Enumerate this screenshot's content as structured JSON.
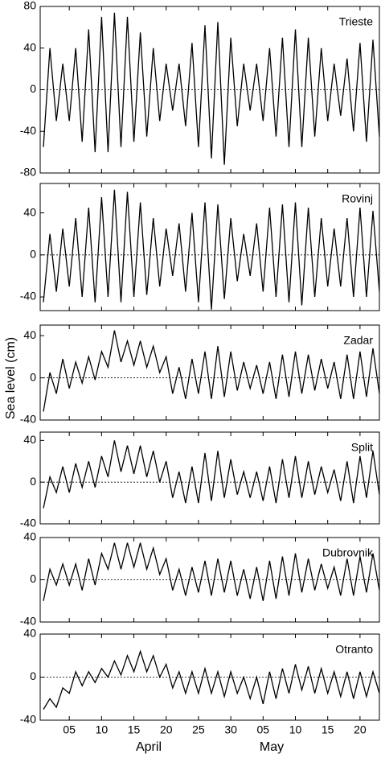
{
  "y_label": "Sea level (cm)",
  "month_labels": [
    "April",
    "May"
  ],
  "chart_data": [
    {
      "type": "line",
      "title": "Trieste",
      "color": "#000000",
      "x": [
        1,
        2,
        3,
        4,
        5,
        6,
        7,
        8,
        9,
        10,
        11,
        12,
        13,
        14,
        15,
        16,
        17,
        18,
        19,
        20,
        21,
        22,
        23,
        24,
        25,
        26,
        27,
        28,
        29,
        30,
        31,
        32,
        33,
        34,
        35,
        36,
        37,
        38,
        39,
        40,
        41,
        42,
        43,
        44,
        45,
        46,
        47,
        48,
        49,
        50,
        51,
        52,
        53
      ],
      "values": [
        -55,
        40,
        -30,
        25,
        -30,
        40,
        -50,
        58,
        -60,
        70,
        -60,
        74,
        -55,
        70,
        -50,
        55,
        -45,
        40,
        -30,
        25,
        -20,
        25,
        -35,
        45,
        -55,
        62,
        -66,
        65,
        -72,
        50,
        -35,
        25,
        -20,
        25,
        -30,
        40,
        -45,
        50,
        -55,
        58,
        -55,
        50,
        -45,
        40,
        -30,
        25,
        -25,
        30,
        -40,
        45,
        -50,
        48,
        -45
      ],
      "xlim": [
        0.5,
        53
      ],
      "ylim": [
        -80,
        80
      ],
      "yticks": [
        -80,
        -40,
        0,
        40,
        80
      ]
    },
    {
      "type": "line",
      "title": "Rovinj",
      "color": "#000000",
      "x": [
        1,
        2,
        3,
        4,
        5,
        6,
        7,
        8,
        9,
        10,
        11,
        12,
        13,
        14,
        15,
        16,
        17,
        18,
        19,
        20,
        21,
        22,
        23,
        24,
        25,
        26,
        27,
        28,
        29,
        30,
        31,
        32,
        33,
        34,
        35,
        36,
        37,
        38,
        39,
        40,
        41,
        42,
        43,
        44,
        45,
        46,
        47,
        48,
        49,
        50,
        51,
        52,
        53
      ],
      "values": [
        -45,
        20,
        -35,
        25,
        -30,
        35,
        -40,
        45,
        -45,
        55,
        -40,
        62,
        -45,
        60,
        -40,
        50,
        -38,
        35,
        -30,
        25,
        -20,
        30,
        -35,
        40,
        -45,
        50,
        -52,
        48,
        -42,
        35,
        -25,
        20,
        -20,
        30,
        -35,
        45,
        -40,
        48,
        -45,
        50,
        -48,
        45,
        -40,
        35,
        -30,
        25,
        -30,
        35,
        -40,
        45,
        -40,
        42,
        -35
      ],
      "xlim": [
        0.5,
        53
      ],
      "ylim": [
        -53,
        68
      ],
      "yticks": [
        -40,
        0,
        40
      ]
    },
    {
      "type": "line",
      "title": "Zadar",
      "color": "#000000",
      "x": [
        1,
        2,
        3,
        4,
        5,
        6,
        7,
        8,
        9,
        10,
        11,
        12,
        13,
        14,
        15,
        16,
        17,
        18,
        19,
        20,
        21,
        22,
        23,
        24,
        25,
        26,
        27,
        28,
        29,
        30,
        31,
        32,
        33,
        34,
        35,
        36,
        37,
        38,
        39,
        40,
        41,
        42,
        43,
        44,
        45,
        46,
        47,
        48,
        49,
        50,
        51,
        52,
        53
      ],
      "values": [
        -32,
        5,
        -15,
        18,
        -10,
        15,
        -5,
        20,
        -2,
        25,
        10,
        45,
        15,
        35,
        12,
        35,
        10,
        30,
        5,
        20,
        -15,
        10,
        -20,
        18,
        -15,
        25,
        -20,
        30,
        -18,
        25,
        -12,
        15,
        -10,
        12,
        -15,
        15,
        -20,
        22,
        -18,
        25,
        -15,
        22,
        -12,
        18,
        -10,
        15,
        -20,
        22,
        -20,
        25,
        -18,
        28,
        -15
      ],
      "xlim": [
        0.5,
        53
      ],
      "ylim": [
        -40,
        50
      ],
      "yticks": [
        -40,
        0,
        40
      ]
    },
    {
      "type": "line",
      "title": "Split",
      "color": "#000000",
      "x": [
        1,
        2,
        3,
        4,
        5,
        6,
        7,
        8,
        9,
        10,
        11,
        12,
        13,
        14,
        15,
        16,
        17,
        18,
        19,
        20,
        21,
        22,
        23,
        24,
        25,
        26,
        27,
        28,
        29,
        30,
        31,
        32,
        33,
        34,
        35,
        36,
        37,
        38,
        39,
        40,
        41,
        42,
        43,
        44,
        45,
        46,
        47,
        48,
        49,
        50,
        51,
        52,
        53
      ],
      "values": [
        -25,
        5,
        -10,
        15,
        -10,
        18,
        -5,
        20,
        -5,
        25,
        5,
        40,
        10,
        35,
        8,
        35,
        5,
        30,
        0,
        20,
        -15,
        10,
        -20,
        15,
        -20,
        28,
        -18,
        30,
        -15,
        22,
        -12,
        10,
        -15,
        10,
        -18,
        15,
        -20,
        22,
        -15,
        25,
        -15,
        20,
        -12,
        15,
        -10,
        12,
        -18,
        20,
        -20,
        25,
        -15,
        30,
        -12
      ],
      "xlim": [
        0.5,
        53
      ],
      "ylim": [
        -40,
        48
      ],
      "yticks": [
        -40,
        0,
        40
      ]
    },
    {
      "type": "line",
      "title": "Dubrovnik",
      "color": "#000000",
      "x": [
        1,
        2,
        3,
        4,
        5,
        6,
        7,
        8,
        9,
        10,
        11,
        12,
        13,
        14,
        15,
        16,
        17,
        18,
        19,
        20,
        21,
        22,
        23,
        24,
        25,
        26,
        27,
        28,
        29,
        30,
        31,
        32,
        33,
        34,
        35,
        36,
        37,
        38,
        39,
        40,
        41,
        42,
        43,
        44,
        45,
        46,
        47,
        48,
        49,
        50,
        51,
        52,
        53
      ],
      "values": [
        -20,
        10,
        -5,
        15,
        -5,
        15,
        -10,
        20,
        -5,
        25,
        10,
        35,
        10,
        35,
        12,
        35,
        10,
        30,
        5,
        20,
        -10,
        10,
        -15,
        12,
        -12,
        18,
        -15,
        20,
        -12,
        18,
        -15,
        10,
        -18,
        12,
        -20,
        18,
        -18,
        22,
        -15,
        25,
        -12,
        20,
        -10,
        15,
        -8,
        12,
        -15,
        20,
        -15,
        22,
        -12,
        25,
        -10
      ],
      "xlim": [
        0.5,
        53
      ],
      "ylim": [
        -40,
        40
      ],
      "yticks": [
        -40,
        0,
        40
      ]
    },
    {
      "type": "line",
      "title": "Otranto",
      "color": "#000000",
      "x": [
        1,
        2,
        3,
        4,
        5,
        6,
        7,
        8,
        9,
        10,
        11,
        12,
        13,
        14,
        15,
        16,
        17,
        18,
        19,
        20,
        21,
        22,
        23,
        24,
        25,
        26,
        27,
        28,
        29,
        30,
        31,
        32,
        33,
        34,
        35,
        36,
        37,
        38,
        39,
        40,
        41,
        42,
        43,
        44,
        45,
        46,
        47,
        48,
        49,
        50,
        51,
        52,
        53
      ],
      "values": [
        -30,
        -20,
        -28,
        -10,
        -15,
        5,
        -8,
        5,
        -5,
        8,
        0,
        15,
        2,
        20,
        5,
        24,
        5,
        20,
        0,
        12,
        -10,
        5,
        -15,
        5,
        -15,
        8,
        -15,
        5,
        -18,
        5,
        -15,
        0,
        -20,
        0,
        -25,
        5,
        -20,
        8,
        -15,
        12,
        -12,
        10,
        -15,
        8,
        -15,
        5,
        -18,
        5,
        -20,
        5,
        -18,
        5,
        -15
      ],
      "xlim": [
        0.5,
        53
      ],
      "ylim": [
        -40,
        40
      ],
      "yticks": [
        -40,
        0,
        40
      ],
      "xticks": [
        {
          "value": 5,
          "label": "05"
        },
        10,
        15,
        20,
        25,
        30,
        {
          "value": 35,
          "label": "05"
        },
        {
          "value": 40,
          "label": "10"
        },
        {
          "value": 45,
          "label": "15"
        },
        {
          "value": 50,
          "label": "20"
        }
      ]
    }
  ]
}
